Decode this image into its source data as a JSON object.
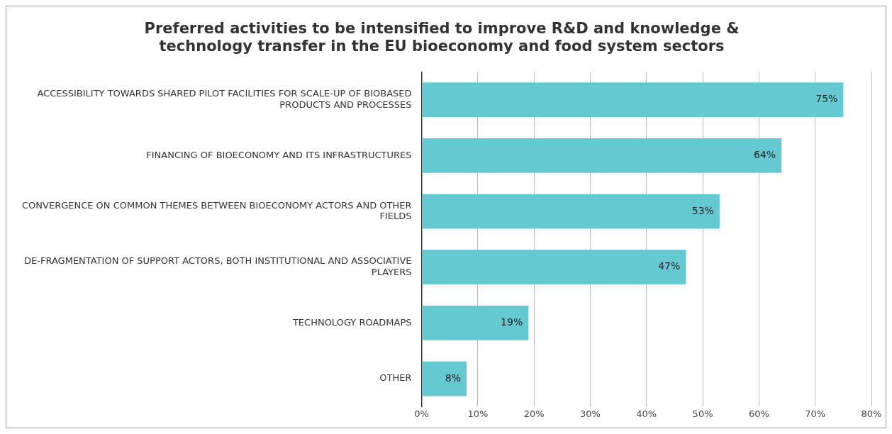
{
  "chart_data": {
    "type": "bar",
    "orientation": "horizontal",
    "title": "Preferred activities to be intensified to improve R&D and knowledge & technology transfer in the EU bioeconomy and food system sectors",
    "categories": [
      "ACCESSIBILITY TOWARDS SHARED PILOT FACILITIES FOR SCALE-UP OF BIOBASED PRODUCTS AND PROCESSES",
      "FINANCING OF BIOECONOMY AND ITS INFRASTRUCTURES",
      "CONVERGENCE ON COMMON THEMES BETWEEN BIOECONOMY ACTORS AND OTHER FIELDS",
      "DE-FRAGMENTATION OF SUPPORT ACTORS, BOTH INSTITUTIONAL AND ASSOCIATIVE PLAYERS",
      "TECHNOLOGY ROADMAPS",
      "OTHER"
    ],
    "values": [
      75,
      64,
      53,
      47,
      19,
      8
    ],
    "value_labels": [
      "75%",
      "64%",
      "53%",
      "47%",
      "19%",
      "8%"
    ],
    "color": "#65c9d1",
    "xlim": [
      0,
      80
    ],
    "xticks": [
      {
        "value": 0,
        "label": "0%"
      },
      {
        "value": 10,
        "label": "10%"
      },
      {
        "value": 20,
        "label": "20%"
      },
      {
        "value": 30,
        "label": "30%"
      },
      {
        "value": 40,
        "label": "40%"
      },
      {
        "value": 50,
        "label": "50%"
      },
      {
        "value": 60,
        "label": "60%"
      },
      {
        "value": 70,
        "label": "70%"
      },
      {
        "value": 80,
        "label": "80%"
      }
    ],
    "grid": "x",
    "legend": false
  }
}
